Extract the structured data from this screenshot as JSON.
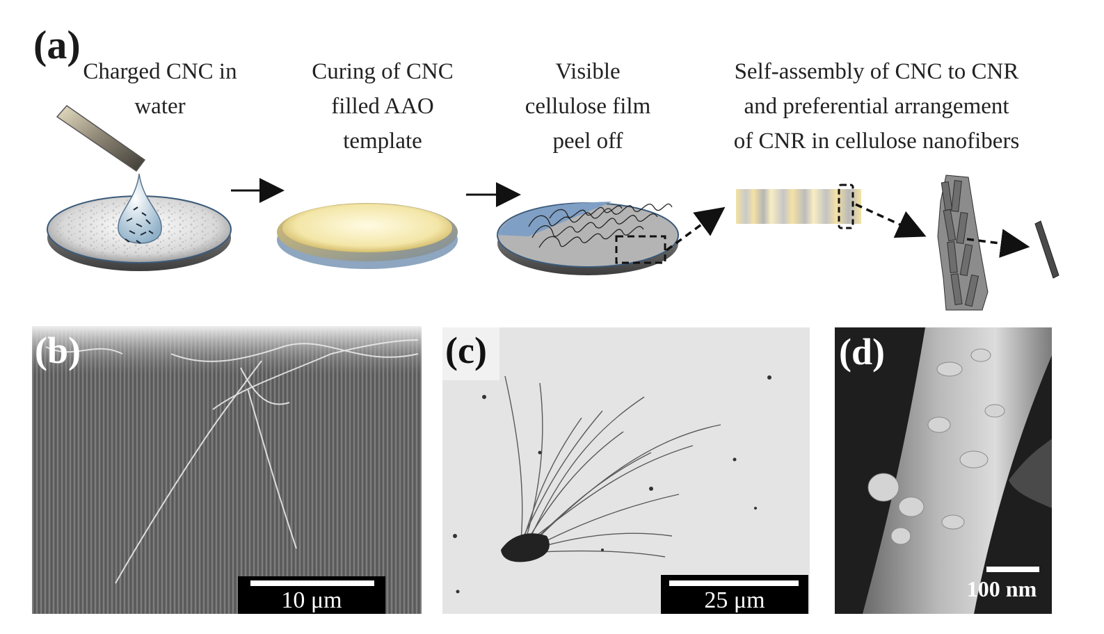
{
  "panels": {
    "a": {
      "label": "(a)",
      "steps": [
        {
          "lines": [
            "Charged CNC in",
            "water"
          ]
        },
        {
          "lines": [
            "Curing of CNC",
            "filled  AAO",
            "template"
          ]
        },
        {
          "lines": [
            "Visible",
            "cellulose  film",
            "peel off"
          ]
        },
        {
          "lines": [
            "Self-assembly of CNC to CNR",
            "and preferential arrangement",
            "of CNR in cellulose nanofibers"
          ]
        }
      ]
    },
    "b": {
      "label": "(b)",
      "scalebar": "10 μm"
    },
    "c": {
      "label": "(c)",
      "scalebar": "25 μm"
    },
    "d": {
      "label": "(d)",
      "scalebar": "100 nm"
    }
  }
}
